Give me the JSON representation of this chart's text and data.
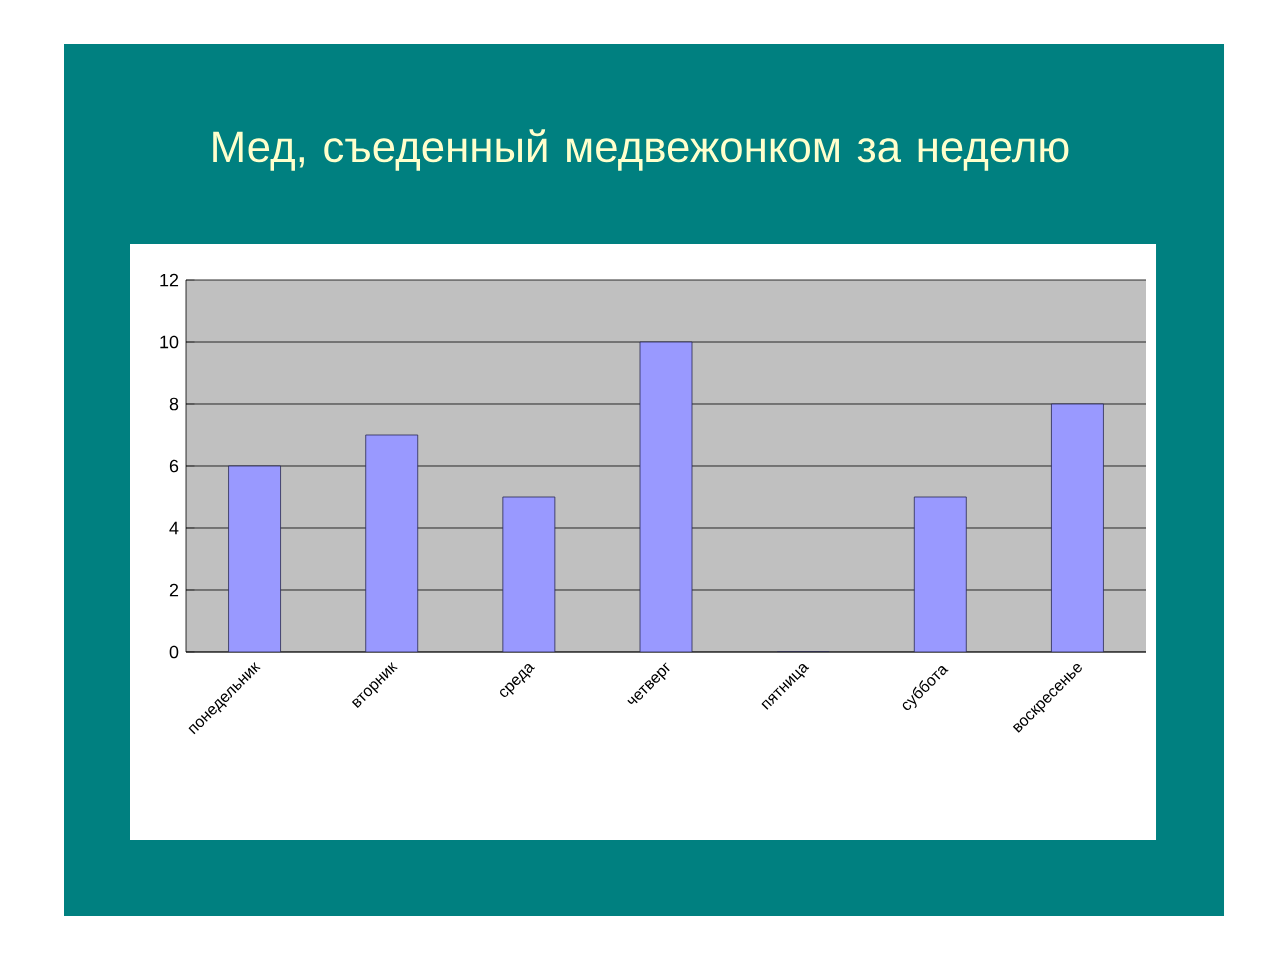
{
  "chart_data": {
    "type": "bar",
    "title": "Мед, съеденный медвежонком за неделю",
    "categories": [
      "понедельник",
      "вторник",
      "среда",
      "четверг",
      "пятница",
      "суббота",
      "воскресенье"
    ],
    "values": [
      6,
      7,
      5,
      10,
      0,
      5,
      8
    ],
    "color": "#9999ff",
    "ylim": [
      0,
      12
    ],
    "yticks": [
      0,
      2,
      4,
      6,
      8,
      10,
      12
    ],
    "grid": "y"
  }
}
